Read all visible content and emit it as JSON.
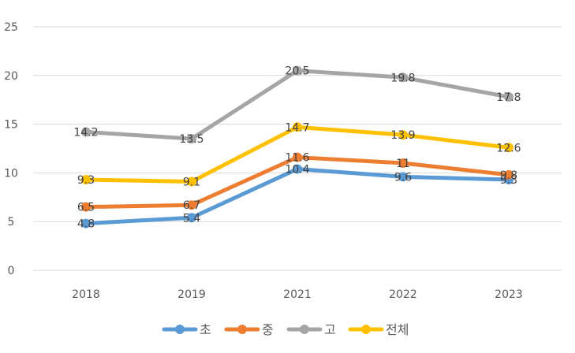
{
  "chart_data": {
    "type": "line",
    "categories": [
      "2018",
      "2019",
      "2021",
      "2022",
      "2023"
    ],
    "ylim": [
      0,
      25
    ],
    "yticks": [
      "0",
      "5",
      "10",
      "15",
      "20",
      "25"
    ],
    "grid": true,
    "legend_position": "bottom",
    "series": [
      {
        "name": "초",
        "color": "#5b9bd5",
        "values": [
          4.8,
          5.4,
          10.4,
          9.6,
          9.3
        ],
        "labels": [
          "4.8",
          "5.4",
          "10.4",
          "9.6",
          "9.3"
        ]
      },
      {
        "name": "중",
        "color": "#ed7d31",
        "values": [
          6.5,
          6.7,
          11.6,
          11,
          9.8
        ],
        "labels": [
          "6.5",
          "6.7",
          "11.6",
          "11",
          "9.8"
        ]
      },
      {
        "name": "고",
        "color": "#a5a5a5",
        "values": [
          14.2,
          13.5,
          20.5,
          19.8,
          17.8
        ],
        "labels": [
          "14.2",
          "13.5",
          "20.5",
          "19.8",
          "17.8"
        ]
      },
      {
        "name": "전체",
        "color": "#ffc000",
        "values": [
          9.3,
          9.1,
          14.7,
          13.9,
          12.6
        ],
        "labels": [
          "9.3",
          "9.1",
          "14.7",
          "13.9",
          "12.6"
        ]
      }
    ]
  }
}
